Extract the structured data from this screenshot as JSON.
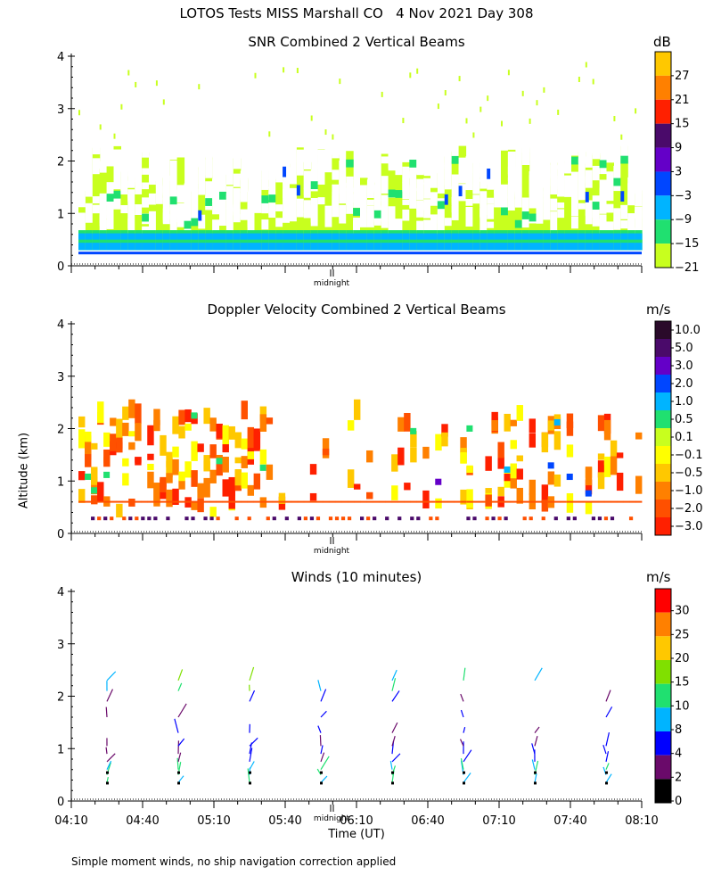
{
  "title": "LOTOS Tests MISS Marshall CO   4 Nov 2021 Day 308",
  "y_axis_label": "Altitude (km)",
  "x_axis_label": "Time (UT)",
  "footnote": "Simple moment winds, no ship navigation correction applied",
  "midnight_label": "midnight",
  "chart_data": [
    {
      "type": "heatmap",
      "title": "SNR Combined 2 Vertical Beams",
      "unit": "dB",
      "ylim": [
        0,
        4
      ],
      "yticks": [
        "0",
        "1",
        "2",
        "3",
        "4"
      ],
      "colorbar_labels": [
        "27",
        "21",
        "15",
        "9",
        "3",
        "−3",
        "−9",
        "−15",
        "−21"
      ],
      "colors": [
        "#ffc800",
        "#ff8000",
        "#ff2000",
        "#4a0a6a",
        "#6400c8",
        "#0046ff",
        "#00b4ff",
        "#20e070",
        "#c8ff1e"
      ],
      "x_tick_labels": [],
      "layers": [
        {
          "name": "background",
          "from": 0.3,
          "to": 2.3,
          "color": "#c8ff1e"
        },
        {
          "name": "low-layer",
          "from": 0.25,
          "to": 0.65,
          "color": "#00b4ff"
        }
      ]
    },
    {
      "type": "heatmap",
      "title": "Doppler Velocity Combined 2 Vertical Beams",
      "unit": "m/s",
      "ylim": [
        0,
        4
      ],
      "yticks": [
        "0",
        "1",
        "2",
        "3",
        "4"
      ],
      "colorbar_labels": [
        "10.0",
        "5.0",
        "3.0",
        "2.0",
        "1.0",
        "0.5",
        "0.1",
        "−0.1",
        "−0.5",
        "−1.0",
        "−2.0",
        "−3.0"
      ],
      "colors": [
        "#2a0a2a",
        "#4a0a6a",
        "#6400c8",
        "#0046ff",
        "#00b4ff",
        "#20e070",
        "#c8ff1e",
        "#ffff00",
        "#ffc800",
        "#ff8000",
        "#ff5000",
        "#ff2000"
      ],
      "x_tick_labels": []
    },
    {
      "type": "wind-profile",
      "title": "Winds (10 minutes)",
      "unit": "m/s",
      "ylim": [
        0,
        4
      ],
      "yticks": [
        "0",
        "1",
        "2",
        "3",
        "4"
      ],
      "colorbar_labels": [
        "30",
        "25",
        "20",
        "15",
        "10",
        "8",
        "4",
        "2",
        "0"
      ],
      "colors": [
        "#ff0000",
        "#ff8000",
        "#ffc800",
        "#80e000",
        "#20e070",
        "#00b4ff",
        "#0000ff",
        "#6a0a6a",
        "#000000"
      ],
      "x_tick_labels": [
        "04:10",
        "04:40",
        "05:10",
        "05:40",
        "06:10",
        "06:40",
        "07:10",
        "07:40",
        "08:10"
      ],
      "profile_times": [
        "04:25",
        "04:55",
        "05:25",
        "05:55",
        "06:25",
        "06:55",
        "07:25",
        "07:55"
      ]
    }
  ]
}
